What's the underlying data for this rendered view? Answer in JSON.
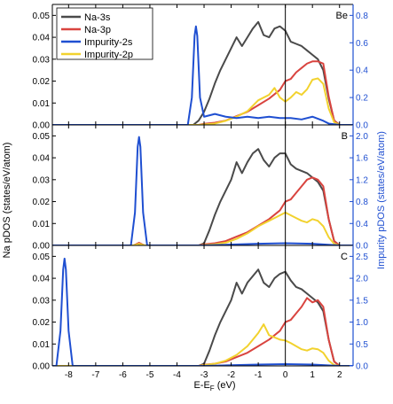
{
  "chart_data": {
    "type": "line",
    "xlabel": "E-E",
    "xlabel_sub": "F",
    "xlabel_unit": " (eV)",
    "ylabel_left": "Na pDOS (states/eV/atom)",
    "ylabel_right": "Impurity pDOS (states/eV/atom)",
    "xlim": [
      -8.6,
      2.5
    ],
    "xticks": [
      -8,
      -7,
      -6,
      -5,
      -4,
      -3,
      -2,
      -1,
      0,
      1,
      2
    ],
    "fermi_line_x": 0,
    "colors": {
      "na3s": "#4a4a4a",
      "na3p": "#d9443f",
      "imp2s": "#1f4fd1",
      "imp2p": "#f2d22e"
    },
    "legend": [
      {
        "name": "Na-3s",
        "color": "#4a4a4a"
      },
      {
        "name": "Na-3p",
        "color": "#d9443f"
      },
      {
        "name": "Impurity-2s",
        "color": "#1f4fd1"
      },
      {
        "name": "Impurity-2p",
        "color": "#f2d22e"
      }
    ],
    "panels": [
      {
        "label": "Be",
        "ylim_left": [
          0,
          0.055
        ],
        "yticks_left": [
          0.0,
          0.01,
          0.02,
          0.03,
          0.04,
          0.05
        ],
        "ylim_right": [
          0,
          0.88
        ],
        "yticks_right": [
          0.0,
          0.2,
          0.4,
          0.6,
          0.8
        ],
        "series": [
          {
            "key": "na3s",
            "axis": "left",
            "x": [
              -8.6,
              -3.4,
              -3.2,
              -3.0,
              -2.8,
              -2.6,
              -2.4,
              -2.2,
              -2.0,
              -1.8,
              -1.6,
              -1.4,
              -1.2,
              -1.0,
              -0.8,
              -0.6,
              -0.4,
              -0.2,
              0.0,
              0.2,
              0.4,
              0.6,
              0.8,
              1.0,
              1.2,
              1.4,
              1.6,
              1.8,
              2.0,
              2.5
            ],
            "values": [
              0,
              0,
              0.002,
              0.006,
              0.012,
              0.019,
              0.025,
              0.03,
              0.035,
              0.04,
              0.036,
              0.04,
              0.044,
              0.047,
              0.041,
              0.04,
              0.044,
              0.045,
              0.043,
              0.038,
              0.037,
              0.036,
              0.034,
              0.032,
              0.03,
              0.025,
              0.012,
              0.002,
              0,
              0
            ]
          },
          {
            "key": "na3p",
            "axis": "left",
            "x": [
              -8.6,
              -3.2,
              -3.0,
              -2.6,
              -2.2,
              -1.8,
              -1.4,
              -1.0,
              -0.6,
              -0.2,
              0.0,
              0.2,
              0.4,
              0.6,
              0.8,
              1.0,
              1.2,
              1.4,
              1.6,
              1.8,
              2.0,
              2.5
            ],
            "values": [
              0,
              0,
              0.0005,
              0.001,
              0.002,
              0.004,
              0.006,
              0.009,
              0.012,
              0.016,
              0.02,
              0.021,
              0.024,
              0.026,
              0.028,
              0.029,
              0.029,
              0.028,
              0.013,
              0.002,
              0,
              0
            ]
          },
          {
            "key": "imp2s",
            "axis": "right",
            "x": [
              -8.6,
              -3.6,
              -3.45,
              -3.35,
              -3.3,
              -3.25,
              -3.15,
              -3.0,
              -2.6,
              -2.2,
              -1.8,
              -1.4,
              -1.0,
              -0.6,
              -0.2,
              0.2,
              0.6,
              1.0,
              1.4,
              1.6,
              2.0,
              2.5
            ],
            "values": [
              0,
              0,
              0.2,
              0.65,
              0.72,
              0.65,
              0.2,
              0.06,
              0.08,
              0.06,
              0.05,
              0.06,
              0.05,
              0.06,
              0.05,
              0.05,
              0.04,
              0.06,
              0.03,
              0.01,
              0,
              0
            ]
          },
          {
            "key": "imp2p",
            "axis": "right",
            "x": [
              -8.6,
              -3.2,
              -2.6,
              -2.2,
              -1.8,
              -1.4,
              -1.0,
              -0.6,
              -0.4,
              -0.2,
              0.0,
              0.2,
              0.4,
              0.6,
              0.8,
              1.0,
              1.2,
              1.4,
              1.6,
              1.8,
              2.0,
              2.5
            ],
            "values": [
              0,
              0,
              0.01,
              0.03,
              0.06,
              0.1,
              0.18,
              0.22,
              0.27,
              0.2,
              0.17,
              0.2,
              0.24,
              0.22,
              0.26,
              0.33,
              0.34,
              0.3,
              0.12,
              0.02,
              0,
              0
            ]
          }
        ]
      },
      {
        "label": "B",
        "ylim_left": [
          0,
          0.055
        ],
        "yticks_left": [
          0.0,
          0.01,
          0.02,
          0.03,
          0.04,
          0.05
        ],
        "ylim_right": [
          0,
          2.2
        ],
        "yticks_right": [
          0.0,
          0.4,
          0.8,
          1.2,
          1.6,
          2.0
        ],
        "series": [
          {
            "key": "na3s",
            "axis": "left",
            "x": [
              -8.6,
              -3.2,
              -3.0,
              -2.8,
              -2.6,
              -2.4,
              -2.2,
              -2.0,
              -1.8,
              -1.6,
              -1.4,
              -1.2,
              -1.0,
              -0.8,
              -0.6,
              -0.4,
              -0.2,
              0.0,
              0.2,
              0.4,
              0.6,
              0.8,
              1.0,
              1.2,
              1.4,
              1.6,
              1.8,
              2.0,
              2.5
            ],
            "values": [
              0,
              0,
              0.001,
              0.007,
              0.014,
              0.02,
              0.025,
              0.03,
              0.038,
              0.033,
              0.038,
              0.042,
              0.044,
              0.039,
              0.036,
              0.04,
              0.042,
              0.042,
              0.037,
              0.035,
              0.034,
              0.033,
              0.031,
              0.029,
              0.025,
              0.012,
              0.002,
              0,
              0
            ]
          },
          {
            "key": "na3p",
            "axis": "left",
            "x": [
              -8.6,
              -5.6,
              -5.4,
              -5.2,
              -3.2,
              -3.0,
              -2.6,
              -2.2,
              -1.8,
              -1.4,
              -1.0,
              -0.6,
              -0.2,
              0.0,
              0.2,
              0.4,
              0.6,
              0.8,
              1.0,
              1.2,
              1.4,
              1.6,
              1.8,
              2.0,
              2.5
            ],
            "values": [
              0,
              0,
              0.0012,
              0,
              0,
              0.0005,
              0.001,
              0.002,
              0.004,
              0.006,
              0.009,
              0.012,
              0.016,
              0.02,
              0.021,
              0.024,
              0.027,
              0.03,
              0.031,
              0.03,
              0.027,
              0.012,
              0.002,
              0,
              0
            ]
          },
          {
            "key": "imp2s",
            "axis": "right",
            "x": [
              -8.6,
              -5.7,
              -5.55,
              -5.45,
              -5.4,
              -5.35,
              -5.25,
              -5.1,
              -3.0,
              -1.0,
              0.0,
              1.0,
              2.0,
              2.5
            ],
            "values": [
              0,
              0,
              0.6,
              1.8,
              1.98,
              1.8,
              0.6,
              0,
              0,
              0.03,
              0.04,
              0.03,
              0,
              0
            ]
          },
          {
            "key": "imp2p",
            "axis": "right",
            "x": [
              -8.6,
              -5.6,
              -5.4,
              -5.2,
              -3.2,
              -2.6,
              -2.2,
              -1.8,
              -1.4,
              -1.0,
              -0.6,
              -0.4,
              -0.2,
              0.0,
              0.2,
              0.4,
              0.6,
              0.8,
              1.0,
              1.2,
              1.4,
              1.6,
              1.8,
              2.0,
              2.5
            ],
            "values": [
              0,
              0,
              0.03,
              0,
              0,
              0.02,
              0.05,
              0.12,
              0.22,
              0.35,
              0.45,
              0.5,
              0.55,
              0.6,
              0.55,
              0.5,
              0.45,
              0.42,
              0.48,
              0.45,
              0.35,
              0.15,
              0.03,
              0,
              0
            ]
          }
        ]
      },
      {
        "label": "C",
        "ylim_left": [
          0,
          0.055
        ],
        "yticks_left": [
          0.0,
          0.01,
          0.02,
          0.03,
          0.04,
          0.05
        ],
        "ylim_right": [
          0,
          2.75
        ],
        "yticks_right": [
          0.0,
          0.5,
          1.0,
          1.5,
          2.0,
          2.5
        ],
        "series": [
          {
            "key": "na3s",
            "axis": "left",
            "x": [
              -8.6,
              -3.2,
              -3.0,
              -2.8,
              -2.6,
              -2.4,
              -2.2,
              -2.0,
              -1.8,
              -1.6,
              -1.4,
              -1.2,
              -1.0,
              -0.8,
              -0.6,
              -0.4,
              -0.2,
              0.0,
              0.2,
              0.4,
              0.6,
              0.8,
              1.0,
              1.2,
              1.4,
              1.6,
              1.8,
              2.0,
              2.5
            ],
            "values": [
              0,
              0,
              0.001,
              0.007,
              0.014,
              0.02,
              0.025,
              0.03,
              0.038,
              0.033,
              0.038,
              0.041,
              0.044,
              0.038,
              0.036,
              0.04,
              0.042,
              0.043,
              0.039,
              0.036,
              0.035,
              0.033,
              0.031,
              0.029,
              0.025,
              0.012,
              0.002,
              0,
              0
            ]
          },
          {
            "key": "na3p",
            "axis": "left",
            "x": [
              -8.6,
              -3.2,
              -3.0,
              -2.6,
              -2.2,
              -1.8,
              -1.4,
              -1.0,
              -0.6,
              -0.2,
              0.0,
              0.2,
              0.4,
              0.6,
              0.8,
              1.0,
              1.2,
              1.4,
              1.6,
              1.8,
              2.0,
              2.5
            ],
            "values": [
              0,
              0,
              0.0005,
              0.001,
              0.002,
              0.004,
              0.006,
              0.009,
              0.012,
              0.016,
              0.02,
              0.021,
              0.024,
              0.027,
              0.031,
              0.029,
              0.03,
              0.027,
              0.012,
              0.002,
              0,
              0
            ]
          },
          {
            "key": "imp2s",
            "axis": "right",
            "x": [
              -8.6,
              -8.45,
              -8.3,
              -8.2,
              -8.15,
              -8.1,
              -8.0,
              -7.85,
              -3.0,
              -1.0,
              0.0,
              1.0,
              2.0,
              2.5
            ],
            "values": [
              0,
              0,
              0.8,
              2.2,
              2.45,
              2.2,
              0.8,
              0,
              0,
              0.03,
              0.04,
              0.03,
              0,
              0
            ]
          },
          {
            "key": "imp2p",
            "axis": "right",
            "x": [
              -8.6,
              -3.2,
              -2.6,
              -2.2,
              -1.8,
              -1.4,
              -1.2,
              -1.0,
              -0.8,
              -0.6,
              -0.4,
              -0.2,
              0.0,
              0.2,
              0.4,
              0.6,
              0.8,
              1.0,
              1.2,
              1.4,
              1.6,
              1.8,
              2.0,
              2.5
            ],
            "values": [
              0,
              0,
              0.05,
              0.12,
              0.25,
              0.45,
              0.6,
              0.75,
              0.95,
              0.7,
              0.65,
              0.6,
              0.58,
              0.52,
              0.45,
              0.38,
              0.35,
              0.4,
              0.38,
              0.3,
              0.12,
              0.02,
              0,
              0
            ]
          }
        ]
      }
    ]
  }
}
